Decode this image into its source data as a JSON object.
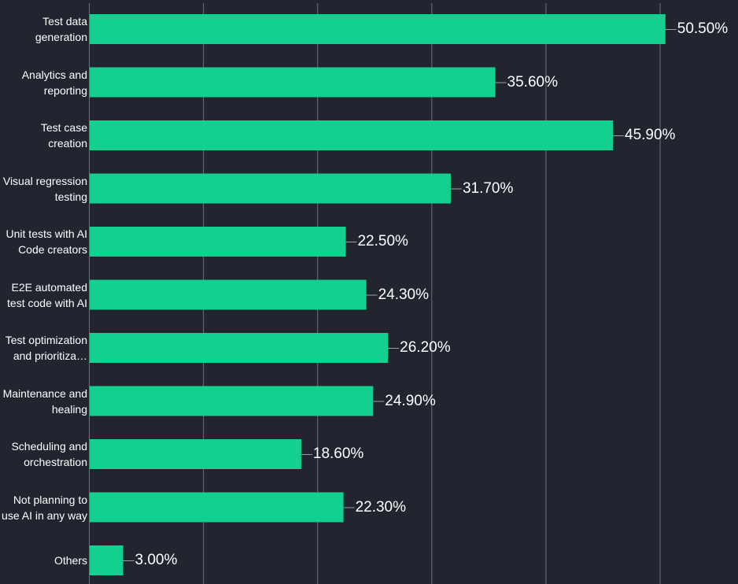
{
  "chart_data": {
    "type": "bar",
    "orientation": "horizontal",
    "categories": [
      "Test data generation",
      "Analytics and reporting",
      "Test case creation",
      "Visual regression testing",
      "Unit tests with AI Code creators",
      "E2E automated test code with AI",
      "Test optimization and prioritiza…",
      "Maintenance and healing",
      "Scheduling and orchestration",
      "Not planning to use AI in any way",
      "Others"
    ],
    "values": [
      50.5,
      35.6,
      45.9,
      31.7,
      22.5,
      24.3,
      26.2,
      24.9,
      18.6,
      22.3,
      3.0
    ],
    "data_labels": [
      "50.50%",
      "35.60%",
      "45.90%",
      "31.70%",
      "22.50%",
      "24.30%",
      "26.20%",
      "24.90%",
      "18.60%",
      "22.30%",
      "3.00%"
    ],
    "xlim": [
      0,
      56
    ],
    "grid": true,
    "grid_ticks": [
      0,
      10,
      20,
      30,
      40,
      50
    ],
    "title": "",
    "xlabel": "",
    "ylabel": "",
    "colors": {
      "bar": "#12d18e",
      "background": "#22252f",
      "grid": "#6b6f7a",
      "text": "#ffffff"
    }
  }
}
